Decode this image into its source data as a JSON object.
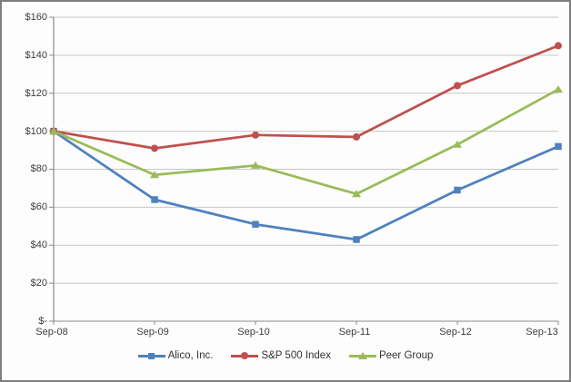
{
  "chart_data": {
    "type": "line",
    "title": "",
    "categories": [
      "Sep-08",
      "Sep-09",
      "Sep-10",
      "Sep-11",
      "Sep-12",
      "Sep-13"
    ],
    "series": [
      {
        "name": "Alico, Inc.",
        "color": "#4F81BD",
        "marker": "square",
        "values": [
          100,
          64,
          51,
          43,
          69,
          92
        ]
      },
      {
        "name": "S&P 500 Index",
        "color": "#C0504D",
        "marker": "circle",
        "values": [
          100,
          91,
          98,
          97,
          124,
          145
        ]
      },
      {
        "name": "Peer Group",
        "color": "#9BBB59",
        "marker": "triangle",
        "values": [
          100,
          77,
          82,
          67,
          93,
          122
        ]
      }
    ],
    "y_axis": {
      "min": 0,
      "max": 160,
      "step": 20,
      "tick_labels": [
        "$160",
        "$140",
        "$120",
        "$100",
        "$80",
        "$60",
        "$40",
        "$20",
        "$-"
      ]
    },
    "x_axis_label": "",
    "y_axis_label": "",
    "legend_position": "bottom",
    "grid": true
  },
  "colors": {
    "grid": "#c6c6c6",
    "axis": "#8a8a8a",
    "text": "#3d3d3d",
    "background": "#fdfdfd",
    "frame_border": "#7f7f7f"
  }
}
